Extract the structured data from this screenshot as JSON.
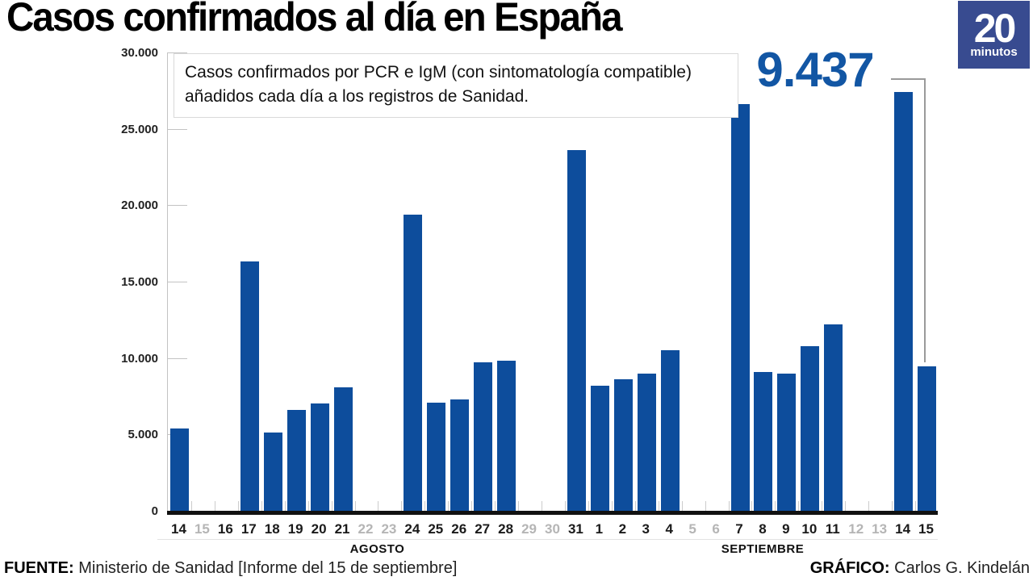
{
  "header": {
    "title": "Casos confirmados al día en España"
  },
  "logo": {
    "big": "20",
    "small": "minutos",
    "bg_color": "#384b90"
  },
  "annotation": {
    "text": "Casos confirmados por PCR e IgM (con sintomatología compatible) añadidos cada día a los registros de Sanidad."
  },
  "callout": {
    "value_label": "9.437"
  },
  "footer": {
    "source_label": "FUENTE:",
    "source_text": " Ministerio de Sanidad [Informe del 15 de septiembre]",
    "credit_label": "GRÁFICO:",
    "credit_text": " Carlos G. Kindelán"
  },
  "chart_data": {
    "type": "bar",
    "title": "Casos confirmados al día en España",
    "subtitle": "Casos confirmados por PCR e IgM (con sintomatología compatible) añadidos cada día a los registros de Sanidad.",
    "ylabel": "",
    "xlabel": "",
    "ylim": [
      0,
      30000
    ],
    "grid": false,
    "y_tick_labels": [
      "30.000",
      "25.000",
      "20.000",
      "15.000",
      "10.000",
      "5.000",
      "0"
    ],
    "y_tick_values": [
      30000,
      25000,
      20000,
      15000,
      10000,
      5000,
      0
    ],
    "bar_color": "#0d4d9c",
    "dim_label_color": "#b5b5b5",
    "months": [
      {
        "label": "AGOSTO",
        "days": 18
      },
      {
        "label": "SEPTIEMBRE",
        "days": 15
      }
    ],
    "highlight": {
      "day": "15",
      "month": "SEPTIEMBRE",
      "value_label": "9.437",
      "value": 9437
    },
    "points": [
      {
        "day": "14",
        "month": "AGOSTO",
        "value": 5400,
        "dim": false
      },
      {
        "day": "15",
        "month": "AGOSTO",
        "value": null,
        "dim": true
      },
      {
        "day": "16",
        "month": "AGOSTO",
        "value": null,
        "dim": false
      },
      {
        "day": "17",
        "month": "AGOSTO",
        "value": 16300,
        "dim": false
      },
      {
        "day": "18",
        "month": "AGOSTO",
        "value": 5100,
        "dim": false
      },
      {
        "day": "19",
        "month": "AGOSTO",
        "value": 6600,
        "dim": false
      },
      {
        "day": "20",
        "month": "AGOSTO",
        "value": 7000,
        "dim": false
      },
      {
        "day": "21",
        "month": "AGOSTO",
        "value": 8100,
        "dim": false
      },
      {
        "day": "22",
        "month": "AGOSTO",
        "value": null,
        "dim": true
      },
      {
        "day": "23",
        "month": "AGOSTO",
        "value": null,
        "dim": true
      },
      {
        "day": "24",
        "month": "AGOSTO",
        "value": 19400,
        "dim": false
      },
      {
        "day": "25",
        "month": "AGOSTO",
        "value": 7100,
        "dim": false
      },
      {
        "day": "26",
        "month": "AGOSTO",
        "value": 7300,
        "dim": false
      },
      {
        "day": "27",
        "month": "AGOSTO",
        "value": 9700,
        "dim": false
      },
      {
        "day": "28",
        "month": "AGOSTO",
        "value": 9800,
        "dim": false
      },
      {
        "day": "29",
        "month": "AGOSTO",
        "value": null,
        "dim": true
      },
      {
        "day": "30",
        "month": "AGOSTO",
        "value": null,
        "dim": true
      },
      {
        "day": "31",
        "month": "AGOSTO",
        "value": 23600,
        "dim": false
      },
      {
        "day": "1",
        "month": "SEPTIEMBRE",
        "value": 8200,
        "dim": false
      },
      {
        "day": "2",
        "month": "SEPTIEMBRE",
        "value": 8600,
        "dim": false
      },
      {
        "day": "3",
        "month": "SEPTIEMBRE",
        "value": 9000,
        "dim": false
      },
      {
        "day": "4",
        "month": "SEPTIEMBRE",
        "value": 10500,
        "dim": false
      },
      {
        "day": "5",
        "month": "SEPTIEMBRE",
        "value": null,
        "dim": true
      },
      {
        "day": "6",
        "month": "SEPTIEMBRE",
        "value": null,
        "dim": true
      },
      {
        "day": "7",
        "month": "SEPTIEMBRE",
        "value": 26600,
        "dim": false
      },
      {
        "day": "8",
        "month": "SEPTIEMBRE",
        "value": 9100,
        "dim": false
      },
      {
        "day": "9",
        "month": "SEPTIEMBRE",
        "value": 9000,
        "dim": false
      },
      {
        "day": "10",
        "month": "SEPTIEMBRE",
        "value": 10800,
        "dim": false
      },
      {
        "day": "11",
        "month": "SEPTIEMBRE",
        "value": 12200,
        "dim": false
      },
      {
        "day": "12",
        "month": "SEPTIEMBRE",
        "value": null,
        "dim": true
      },
      {
        "day": "13",
        "month": "SEPTIEMBRE",
        "value": null,
        "dim": true
      },
      {
        "day": "14",
        "month": "SEPTIEMBRE",
        "value": 27400,
        "dim": false
      },
      {
        "day": "15",
        "month": "SEPTIEMBRE",
        "value": 9437,
        "dim": false
      }
    ]
  }
}
